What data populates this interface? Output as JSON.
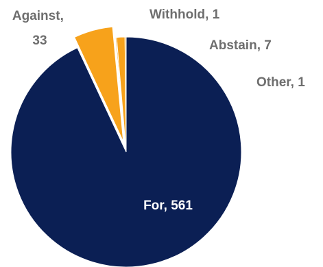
{
  "chart_data": {
    "type": "pie",
    "slices": [
      {
        "label": "For",
        "value": 561,
        "color": "#0b1f54",
        "label_color": "#ffffff"
      },
      {
        "label": "Against",
        "value": 33,
        "color": "#f7a21b",
        "label_color": "#6e6e6e",
        "exploded": true
      },
      {
        "label": "Withhold",
        "value": 1,
        "color": "#f7a21b",
        "label_color": "#6e6e6e"
      },
      {
        "label": "Abstain",
        "value": 7,
        "color": "#f7a21b",
        "label_color": "#6e6e6e"
      },
      {
        "label": "Other",
        "value": 1,
        "color": "#f7a21b",
        "label_color": "#6e6e6e"
      }
    ]
  }
}
